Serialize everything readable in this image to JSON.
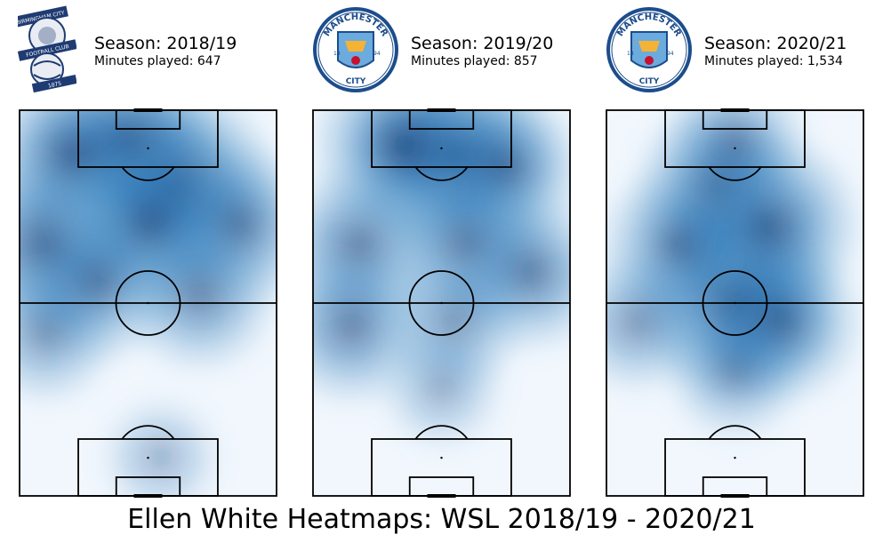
{
  "page_title": "Ellen White Heatmaps: WSL 2018/19 - 2020/21",
  "chart_data": {
    "type": "heatmap",
    "title": "Ellen White Heatmaps: WSL 2018/19 - 2020/21",
    "colormap": "Blues",
    "panels": [
      {
        "club_logo": "birmingham-city-crest",
        "logo_text": [
          "BIRMINGHAM CITY",
          "FOOTBALL CLUB",
          "1875"
        ],
        "season": "Season: 2018/19",
        "minutes": "Minutes played: 647",
        "hotspots": [
          {
            "x": 0.62,
            "y": 0.19,
            "intensity": 1.0
          },
          {
            "x": 0.42,
            "y": 0.08,
            "intensity": 0.85
          },
          {
            "x": 0.2,
            "y": 0.12,
            "intensity": 0.75
          },
          {
            "x": 0.1,
            "y": 0.35,
            "intensity": 0.8
          },
          {
            "x": 0.85,
            "y": 0.3,
            "intensity": 0.6
          },
          {
            "x": 0.5,
            "y": 0.3,
            "intensity": 0.7
          },
          {
            "x": 0.3,
            "y": 0.45,
            "intensity": 0.55
          },
          {
            "x": 0.7,
            "y": 0.48,
            "intensity": 0.5
          },
          {
            "x": 0.1,
            "y": 0.58,
            "intensity": 0.35
          },
          {
            "x": 0.55,
            "y": 0.9,
            "intensity": 0.12
          }
        ]
      },
      {
        "club_logo": "manchester-city-crest",
        "logo_text": [
          "MANCHESTER",
          "CITY",
          "18",
          "94"
        ],
        "season": "Season: 2019/20",
        "minutes": "Minutes played: 857",
        "hotspots": [
          {
            "x": 0.55,
            "y": 0.12,
            "intensity": 1.0
          },
          {
            "x": 0.35,
            "y": 0.09,
            "intensity": 0.8
          },
          {
            "x": 0.75,
            "y": 0.15,
            "intensity": 0.55
          },
          {
            "x": 0.18,
            "y": 0.35,
            "intensity": 0.6
          },
          {
            "x": 0.6,
            "y": 0.35,
            "intensity": 0.6
          },
          {
            "x": 0.85,
            "y": 0.42,
            "intensity": 0.55
          },
          {
            "x": 0.15,
            "y": 0.56,
            "intensity": 0.55
          },
          {
            "x": 0.55,
            "y": 0.55,
            "intensity": 0.35
          },
          {
            "x": 0.5,
            "y": 0.72,
            "intensity": 0.15
          }
        ]
      },
      {
        "club_logo": "manchester-city-crest",
        "logo_text": [
          "MANCHESTER",
          "CITY",
          "18",
          "94"
        ],
        "season": "Season: 2020/21",
        "minutes": "Minutes played: 1,534",
        "hotspots": [
          {
            "x": 0.5,
            "y": 0.49,
            "intensity": 1.0
          },
          {
            "x": 0.62,
            "y": 0.3,
            "intensity": 0.9
          },
          {
            "x": 0.42,
            "y": 0.2,
            "intensity": 0.6
          },
          {
            "x": 0.28,
            "y": 0.35,
            "intensity": 0.55
          },
          {
            "x": 0.68,
            "y": 0.55,
            "intensity": 0.6
          },
          {
            "x": 0.12,
            "y": 0.55,
            "intensity": 0.35
          },
          {
            "x": 0.5,
            "y": 0.08,
            "intensity": 0.4
          },
          {
            "x": 0.5,
            "y": 0.68,
            "intensity": 0.3
          }
        ]
      }
    ]
  }
}
